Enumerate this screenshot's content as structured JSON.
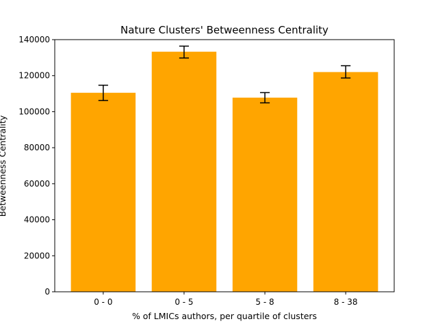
{
  "chart_data": {
    "type": "bar",
    "title": "Nature Clusters' Betweenness Centrality",
    "xlabel": "% of LMICs authors, per quartile of clusters",
    "ylabel": "Betweenness Centrality",
    "categories": [
      "0 - 0",
      "0 - 5",
      "5 - 8",
      "8 - 38"
    ],
    "values": [
      110500,
      133300,
      107800,
      122000
    ],
    "error_low": [
      106200,
      129800,
      104900,
      118700
    ],
    "error_high": [
      114700,
      136400,
      110600,
      125500
    ],
    "yticks": [
      0,
      20000,
      40000,
      60000,
      80000,
      100000,
      120000,
      140000
    ],
    "ytick_labels": [
      "0",
      "20000",
      "40000",
      "60000",
      "80000",
      "100000",
      "120000",
      "140000"
    ],
    "ylim": [
      0,
      140000
    ],
    "grid": false,
    "bar_color": "#FFA500",
    "error_color": "#000000"
  }
}
